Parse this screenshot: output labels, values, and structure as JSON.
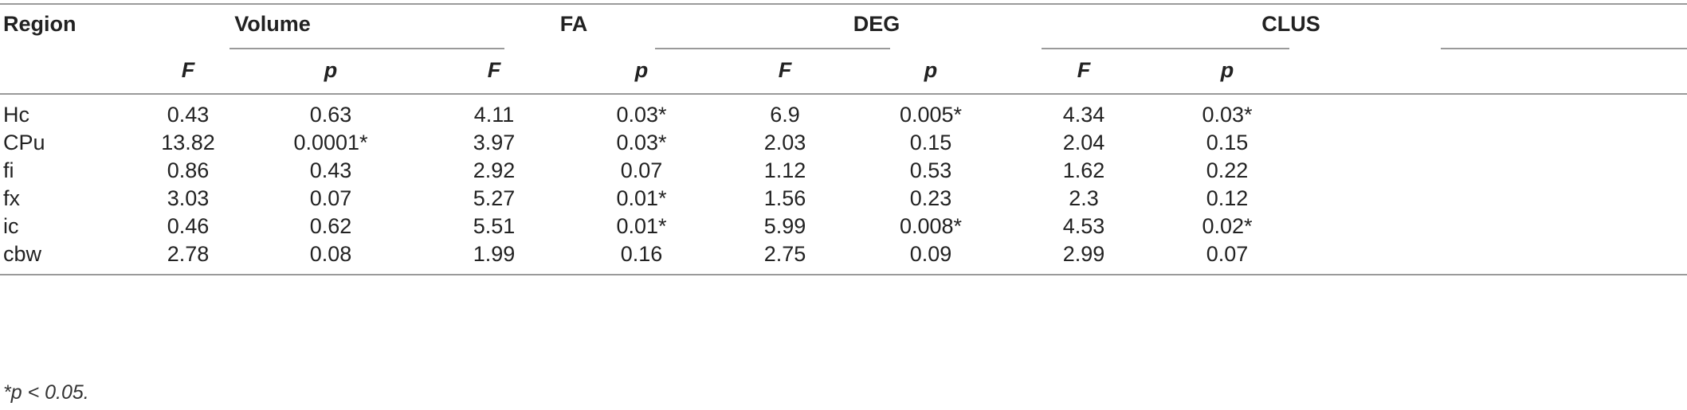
{
  "table": {
    "region_header": "Region",
    "groups": [
      "Volume",
      "FA",
      "DEG",
      "CLUS"
    ],
    "sub_headers": [
      "F",
      "p",
      "F",
      "p",
      "F",
      "p",
      "F",
      "p"
    ],
    "rows": [
      [
        "Hc",
        "0.43",
        "0.63",
        "4.11",
        "0.03*",
        "6.9",
        "0.005*",
        "4.34",
        "0.03*"
      ],
      [
        "CPu",
        "13.82",
        "0.0001*",
        "3.97",
        "0.03*",
        "2.03",
        "0.15",
        "2.04",
        "0.15"
      ],
      [
        "fi",
        "0.86",
        "0.43",
        "2.92",
        "0.07",
        "1.12",
        "0.53",
        "1.62",
        "0.22"
      ],
      [
        "fx",
        "3.03",
        "0.07",
        "5.27",
        "0.01*",
        "1.56",
        "0.23",
        "2.3",
        "0.12"
      ],
      [
        "ic",
        "0.46",
        "0.62",
        "5.51",
        "0.01*",
        "5.99",
        "0.008*",
        "4.53",
        "0.02*"
      ],
      [
        "cbw",
        "2.78",
        "0.08",
        "1.99",
        "0.16",
        "2.75",
        "0.09",
        "2.99",
        "0.07"
      ]
    ],
    "footnote": "*p < 0.05."
  }
}
